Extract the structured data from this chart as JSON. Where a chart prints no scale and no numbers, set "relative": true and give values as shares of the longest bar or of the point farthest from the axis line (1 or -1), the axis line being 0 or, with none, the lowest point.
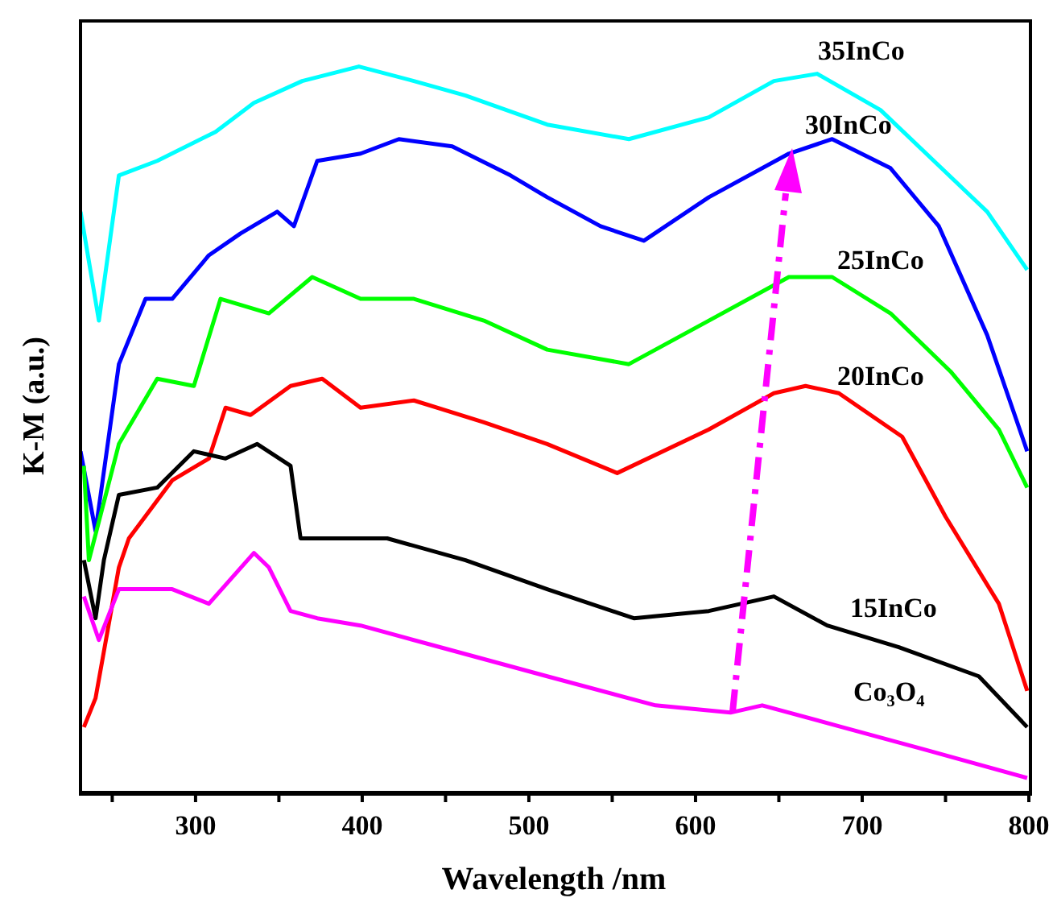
{
  "chart_data": {
    "type": "line",
    "xlabel": "Wavelength /nm",
    "ylabel": "K-M (a.u.)",
    "relative": true,
    "legend": false,
    "xlim": [
      230,
      800
    ],
    "xticks": [
      {
        "value": 250,
        "label": null
      },
      300,
      {
        "value": 350,
        "label": null
      },
      400,
      {
        "value": 450,
        "label": null
      },
      500,
      {
        "value": 550,
        "label": null
      },
      600,
      {
        "value": 650,
        "label": null
      },
      700,
      {
        "value": 750,
        "label": null
      },
      800
    ],
    "series": [
      {
        "name": "35InCo",
        "color": "#00ffff",
        "x": [
          231,
          242,
          254,
          277,
          312,
          335,
          364,
          398,
          431,
          462,
          511,
          560,
          608,
          647,
          673,
          711,
          743,
          775,
          799
        ],
        "values": [
          0.8,
          0.65,
          0.85,
          0.87,
          0.91,
          0.95,
          0.98,
          1.0,
          0.98,
          0.96,
          0.92,
          0.9,
          0.93,
          0.98,
          0.99,
          0.94,
          0.87,
          0.8,
          0.72
        ]
      },
      {
        "name": "30InCo",
        "color": "#0000ff",
        "x": [
          231,
          240,
          254,
          270,
          286,
          308,
          327,
          349,
          359,
          373,
          399,
          422,
          454,
          489,
          511,
          543,
          569,
          608,
          656,
          682,
          717,
          746,
          775,
          799
        ],
        "values": [
          0.47,
          0.36,
          0.59,
          0.68,
          0.68,
          0.74,
          0.77,
          0.8,
          0.78,
          0.87,
          0.88,
          0.9,
          0.89,
          0.85,
          0.82,
          0.78,
          0.76,
          0.82,
          0.88,
          0.9,
          0.86,
          0.78,
          0.63,
          0.47
        ]
      },
      {
        "name": "25InCo",
        "color": "#00ff00",
        "x": [
          233,
          236,
          254,
          277,
          299,
          315,
          344,
          370,
          399,
          431,
          473,
          511,
          560,
          608,
          656,
          682,
          717,
          753,
          782,
          799
        ],
        "values": [
          0.45,
          0.32,
          0.48,
          0.57,
          0.56,
          0.68,
          0.66,
          0.71,
          0.68,
          0.68,
          0.65,
          0.61,
          0.59,
          0.65,
          0.71,
          0.71,
          0.66,
          0.58,
          0.5,
          0.42
        ]
      },
      {
        "name": "20InCo",
        "color": "#ff0000",
        "x": [
          233,
          240,
          254,
          260,
          286,
          308,
          318,
          333,
          357,
          376,
          399,
          431,
          473,
          511,
          553,
          608,
          647,
          666,
          686,
          724,
          750,
          782,
          799
        ],
        "values": [
          0.09,
          0.13,
          0.31,
          0.35,
          0.43,
          0.46,
          0.53,
          0.52,
          0.56,
          0.57,
          0.53,
          0.54,
          0.51,
          0.48,
          0.44,
          0.5,
          0.55,
          0.56,
          0.55,
          0.49,
          0.38,
          0.26,
          0.14
        ]
      },
      {
        "name": "15InCo",
        "color": "#000000",
        "x": [
          233,
          240,
          245,
          254,
          277,
          299,
          318,
          337,
          357,
          363,
          383,
          415,
          462,
          511,
          563,
          608,
          647,
          679,
          722,
          770,
          799
        ],
        "values": [
          0.32,
          0.24,
          0.32,
          0.41,
          0.42,
          0.47,
          0.46,
          0.48,
          0.45,
          0.35,
          0.35,
          0.35,
          0.32,
          0.28,
          0.24,
          0.25,
          0.27,
          0.23,
          0.2,
          0.16,
          0.09
        ]
      },
      {
        "name": "Co₃O₄",
        "color": "#ff00ff",
        "x": [
          233,
          242,
          254,
          286,
          308,
          335,
          344,
          357,
          373,
          399,
          447,
          511,
          576,
          621,
          640,
          688,
          736,
          799
        ],
        "values": [
          0.27,
          0.21,
          0.28,
          0.28,
          0.26,
          0.33,
          0.31,
          0.25,
          0.24,
          0.23,
          0.2,
          0.16,
          0.12,
          0.11,
          0.12,
          0.09,
          0.06,
          0.02
        ]
      }
    ]
  }
}
